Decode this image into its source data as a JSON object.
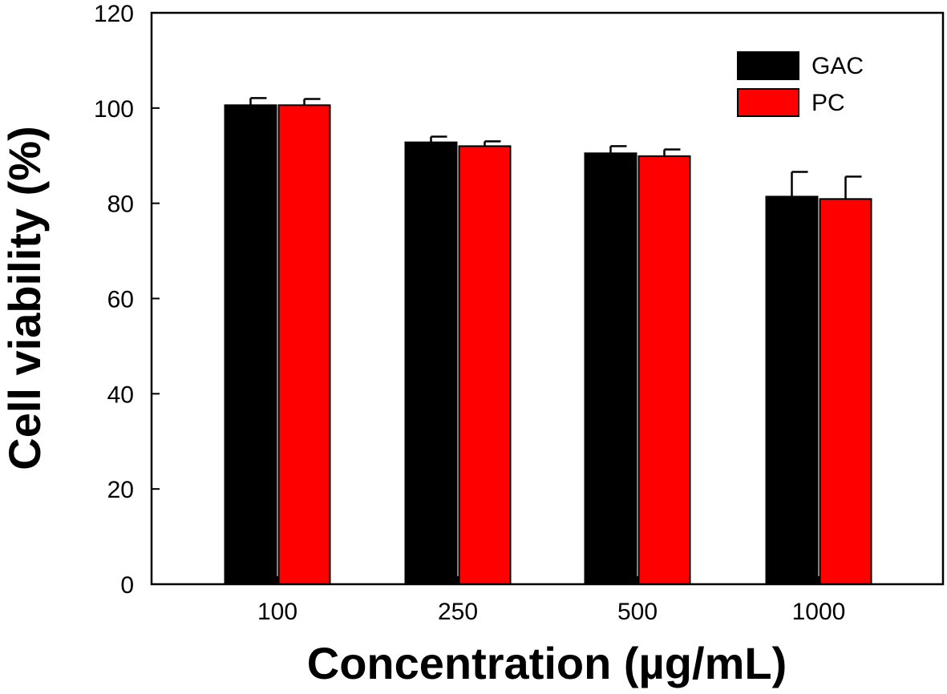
{
  "chart_data": {
    "type": "bar",
    "title": "",
    "xlabel": "Concentration (µg/mL)",
    "ylabel": "Cell viability (%)",
    "categories": [
      "100",
      "250",
      "500",
      "1000"
    ],
    "ylim": [
      0,
      120
    ],
    "yticks": [
      0,
      20,
      40,
      60,
      80,
      100,
      120
    ],
    "grid": false,
    "legend_position": "top-right",
    "series": [
      {
        "name": "GAC",
        "color": "#000000",
        "values": [
          100.6,
          92.8,
          90.5,
          81.4
        ],
        "errors": [
          1.5,
          1.2,
          1.5,
          5.2
        ]
      },
      {
        "name": "PC",
        "color": "#ff0000",
        "values": [
          100.6,
          92.0,
          89.9,
          80.9
        ],
        "errors": [
          1.3,
          1.0,
          1.4,
          4.7
        ]
      }
    ]
  }
}
